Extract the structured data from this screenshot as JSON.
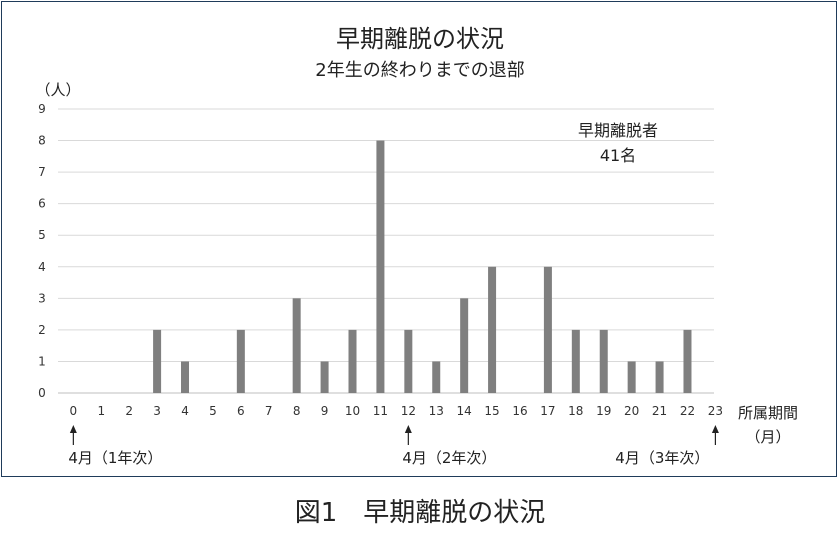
{
  "chart_data": {
    "type": "bar",
    "title": "早期離脱の状況",
    "subtitle": "2年生の終わりまでの退部",
    "ylabel": "（人）",
    "xlabel": [
      "所属期間",
      "（月）"
    ],
    "categories": [
      "0",
      "1",
      "2",
      "3",
      "4",
      "5",
      "6",
      "7",
      "8",
      "9",
      "10",
      "11",
      "12",
      "13",
      "14",
      "15",
      "16",
      "17",
      "18",
      "19",
      "20",
      "21",
      "22",
      "23"
    ],
    "values": [
      0,
      0,
      0,
      2,
      1,
      0,
      2,
      0,
      3,
      1,
      2,
      8,
      2,
      1,
      3,
      4,
      0,
      4,
      2,
      2,
      1,
      1,
      2,
      0
    ],
    "ylim": [
      0,
      9
    ],
    "yticks": [
      0,
      1,
      2,
      3,
      4,
      5,
      6,
      7,
      8,
      9
    ],
    "grid": true,
    "bar_color": "#7f7f7f",
    "annotation": [
      "早期離脱者",
      "41名"
    ],
    "markers": [
      {
        "x": "0",
        "label": "4月（1年次）"
      },
      {
        "x": "12",
        "label": "4月（2年次）"
      },
      {
        "x": "23",
        "label": "4月（3年次）"
      }
    ]
  },
  "caption": "図1　早期離脱の状況"
}
